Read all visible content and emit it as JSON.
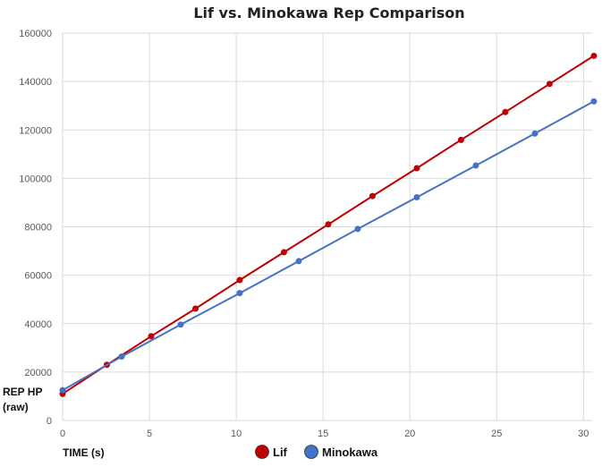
{
  "chart_data": {
    "type": "scatter",
    "title": "Lif vs. Minokawa Rep Comparison",
    "xlabel": "TIME (s)",
    "ylabel_lines": [
      "REP HP",
      "(raw)"
    ],
    "xlim": [
      0,
      30.5
    ],
    "ylim": [
      0,
      160000
    ],
    "x_ticks": [
      0,
      5,
      10,
      15,
      20,
      25,
      30
    ],
    "y_ticks": [
      0,
      20000,
      40000,
      60000,
      80000,
      100000,
      120000,
      140000,
      160000
    ],
    "x_tick_labels": [
      "0",
      "5",
      "10",
      "15",
      "20",
      "25",
      "30"
    ],
    "y_tick_labels": [
      "0",
      "20000",
      "40000",
      "60000",
      "80000",
      "100000",
      "120000",
      "140000",
      "160000"
    ],
    "grid": true,
    "legend_position": "bottom",
    "series": [
      {
        "name": "Lif",
        "color": "#c00000",
        "x": [
          0,
          2.55,
          5.1,
          7.65,
          10.2,
          12.75,
          15.3,
          17.85,
          20.4,
          22.95,
          25.5,
          28.05,
          30.6
        ],
        "y": [
          11000,
          23000,
          34800,
          46200,
          58000,
          69500,
          81000,
          92700,
          104200,
          115900,
          127400,
          139000,
          150600
        ]
      },
      {
        "name": "Minokawa",
        "color": "#4472c4",
        "x": [
          0,
          3.4,
          6.8,
          10.2,
          13.6,
          17.0,
          20.4,
          23.8,
          27.2,
          30.6
        ],
        "y": [
          12500,
          26400,
          39600,
          52600,
          65800,
          79100,
          92200,
          105300,
          118500,
          131800
        ]
      }
    ]
  }
}
